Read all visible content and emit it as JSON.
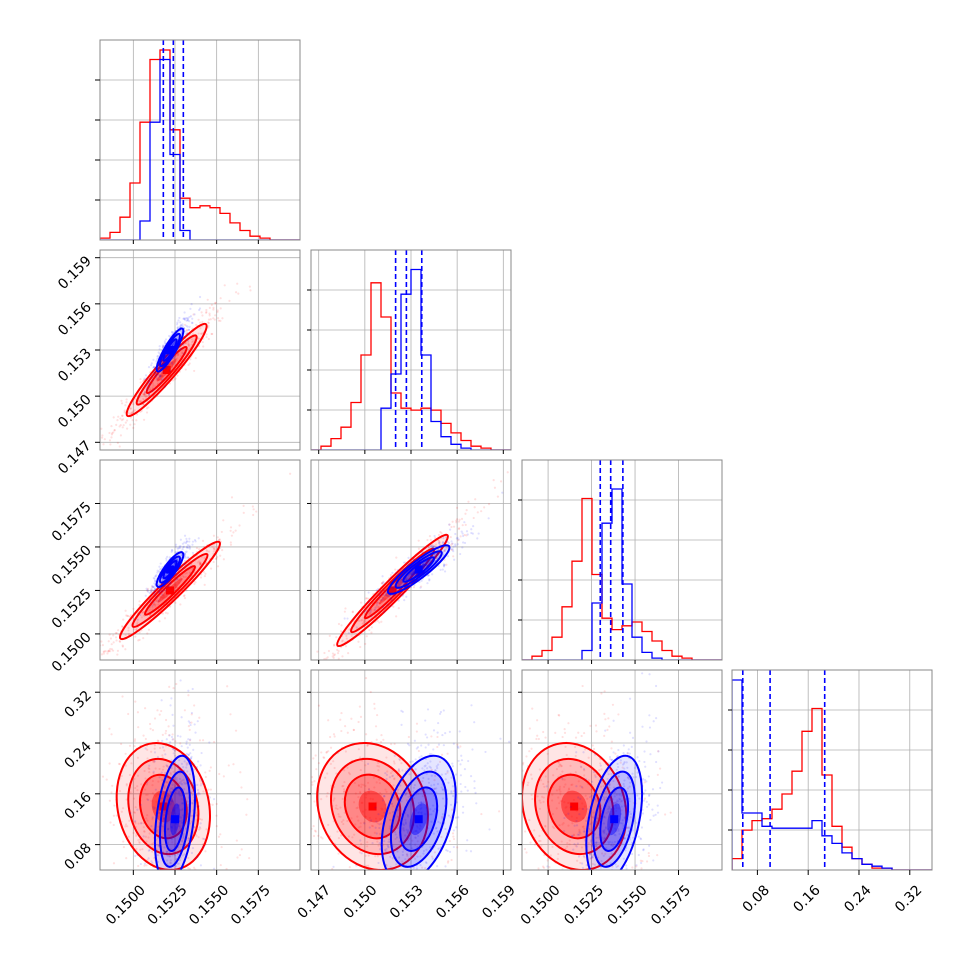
{
  "chart_data": {
    "type": "corner",
    "parameters": 4,
    "grid": true,
    "colors": {
      "samples_a": "#ff0000",
      "samples_b": "#0000ff",
      "frame": "#888888",
      "grid": "#b0b0b0"
    },
    "axes": [
      {
        "index": 0,
        "range": [
          0.148,
          0.16
        ],
        "ticks": [
          "0.1500",
          "0.1525",
          "0.1550",
          "0.1575"
        ],
        "tick_values": [
          0.15,
          0.1525,
          0.155,
          0.1575
        ]
      },
      {
        "index": 1,
        "range": [
          0.1465,
          0.1595
        ],
        "ticks": [
          "0.147",
          "0.150",
          "0.153",
          "0.156",
          "0.159"
        ],
        "tick_values": [
          0.147,
          0.15,
          0.153,
          0.156,
          0.159
        ]
      },
      {
        "index": 2,
        "range": [
          0.1485,
          0.16
        ],
        "ticks": [
          "0.1500",
          "0.1525",
          "0.1550",
          "0.1575"
        ],
        "tick_values": [
          0.15,
          0.1525,
          0.155,
          0.1575
        ]
      },
      {
        "index": 3,
        "range": [
          0.04,
          0.355
        ],
        "ticks": [
          "0.08",
          "0.16",
          "0.24",
          "0.32"
        ],
        "tick_values": [
          0.08,
          0.16,
          0.24,
          0.32
        ]
      }
    ],
    "histograms": [
      {
        "param": 0,
        "bins": [
          0.148,
          0.16,
          20
        ],
        "series_a": [
          0.01,
          0.04,
          0.12,
          0.3,
          0.62,
          0.95,
          1.0,
          0.58,
          0.22,
          0.17,
          0.18,
          0.17,
          0.14,
          0.09,
          0.05,
          0.02,
          0.01,
          0,
          0,
          0
        ],
        "series_b": [
          0,
          0,
          0,
          0,
          0.1,
          0.62,
          0.95,
          0.45,
          0.05,
          0,
          0,
          0,
          0,
          0,
          0,
          0,
          0,
          0,
          0,
          0
        ],
        "quantiles_b": [
          0.1518,
          0.1524,
          0.153
        ]
      },
      {
        "param": 1,
        "bins": [
          0.1465,
          0.1595,
          20
        ],
        "series_a": [
          0,
          0.02,
          0.06,
          0.12,
          0.25,
          0.5,
          0.88,
          0.7,
          0.3,
          0.22,
          0.21,
          0.22,
          0.21,
          0.14,
          0.09,
          0.05,
          0.02,
          0.01,
          0,
          0
        ],
        "series_b": [
          0,
          0,
          0,
          0,
          0,
          0,
          0,
          0.22,
          0.4,
          0.82,
          0.95,
          0.5,
          0.15,
          0.07,
          0.03,
          0.01,
          0,
          0,
          0,
          0
        ],
        "quantiles_b": [
          0.152,
          0.1527,
          0.1537
        ]
      },
      {
        "param": 2,
        "bins": [
          0.1485,
          0.16,
          20
        ],
        "series_a": [
          0,
          0.02,
          0.05,
          0.12,
          0.28,
          0.52,
          0.85,
          0.45,
          0.22,
          0.16,
          0.18,
          0.2,
          0.15,
          0.1,
          0.05,
          0.02,
          0.01,
          0,
          0,
          0
        ],
        "series_b": [
          0,
          0,
          0,
          0,
          0,
          0,
          0.05,
          0.3,
          0.72,
          0.9,
          0.4,
          0.12,
          0.04,
          0.01,
          0,
          0,
          0,
          0,
          0,
          0
        ],
        "quantiles_b": [
          0.153,
          0.1536,
          0.1543
        ]
      },
      {
        "param": 3,
        "bins": [
          0.04,
          0.355,
          20
        ],
        "series_a": [
          0.06,
          0.21,
          0.26,
          0.27,
          0.32,
          0.4,
          0.52,
          0.73,
          0.85,
          0.5,
          0.23,
          0.12,
          0.06,
          0.03,
          0.01,
          0.01,
          0,
          0,
          0,
          0
        ],
        "series_b": [
          1.0,
          0.3,
          0.3,
          0.23,
          0.22,
          0.22,
          0.22,
          0.22,
          0.26,
          0.18,
          0.14,
          0.09,
          0.06,
          0.03,
          0.02,
          0.01,
          0,
          0,
          0,
          0
        ],
        "quantiles_b": [
          0.057,
          0.1,
          0.186
        ]
      }
    ],
    "pairs": [
      {
        "x": 0,
        "y": 1,
        "series_a": {
          "center": [
            0.152,
            0.1517
          ],
          "sd": [
            0.0012,
            0.0015
          ],
          "corr": 0.95
        },
        "series_b": {
          "center": [
            0.1522,
            0.153
          ],
          "sd": [
            0.0004,
            0.0007
          ],
          "corr": 0.88
        }
      },
      {
        "x": 0,
        "y": 2,
        "series_a": {
          "center": [
            0.1522,
            0.1525
          ],
          "sd": [
            0.0015,
            0.0014
          ],
          "corr": 0.96
        },
        "series_b": {
          "center": [
            0.1522,
            0.1537
          ],
          "sd": [
            0.0004,
            0.0005
          ],
          "corr": 0.85
        }
      },
      {
        "x": 1,
        "y": 2,
        "series_a": {
          "center": [
            0.1518,
            0.1525
          ],
          "sd": [
            0.0018,
            0.0016
          ],
          "corr": 0.97
        },
        "series_b": {
          "center": [
            0.1535,
            0.1537
          ],
          "sd": [
            0.001,
            0.0007
          ],
          "corr": 0.9
        }
      },
      {
        "x": 0,
        "y": 3,
        "series_a": {
          "center": [
            0.1518,
            0.14
          ],
          "sd": [
            0.0014,
            0.05
          ],
          "corr": -0.15
        },
        "series_b": {
          "center": [
            0.1525,
            0.12
          ],
          "sd": [
            0.0006,
            0.05
          ],
          "corr": 0.35
        }
      },
      {
        "x": 1,
        "y": 3,
        "series_a": {
          "center": [
            0.1505,
            0.14
          ],
          "sd": [
            0.0018,
            0.05
          ],
          "corr": -0.15
        },
        "series_b": {
          "center": [
            0.1535,
            0.12
          ],
          "sd": [
            0.0012,
            0.05
          ],
          "corr": 0.4
        }
      },
      {
        "x": 2,
        "y": 3,
        "series_a": {
          "center": [
            0.1515,
            0.14
          ],
          "sd": [
            0.0015,
            0.05
          ],
          "corr": -0.15
        },
        "series_b": {
          "center": [
            0.1538,
            0.12
          ],
          "sd": [
            0.0008,
            0.05
          ],
          "corr": 0.4
        }
      }
    ]
  }
}
